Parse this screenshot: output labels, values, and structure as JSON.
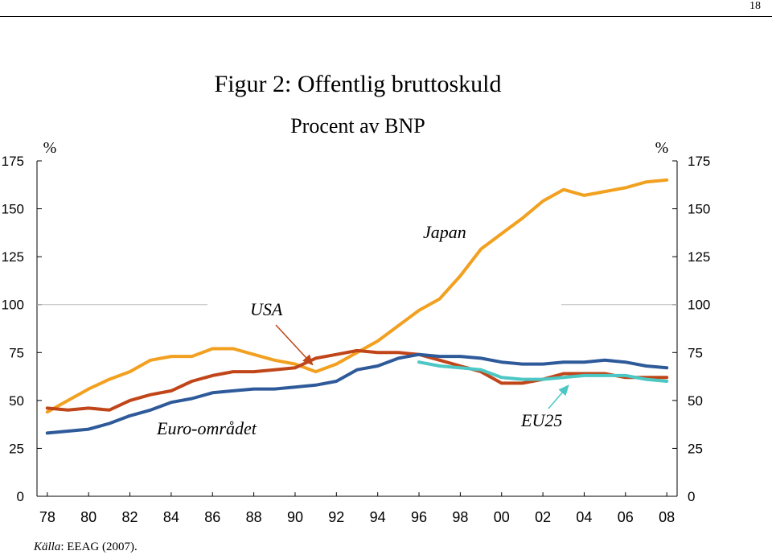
{
  "page": {
    "number": "18"
  },
  "chart_data": {
    "type": "line",
    "title": "Figur 2: Offentlig bruttoskuld",
    "subtitle": "Procent av BNP",
    "ylabel_left": "%",
    "ylabel_right": "%",
    "ylim": [
      0,
      175
    ],
    "yticks": [
      "0",
      "25",
      "50",
      "75",
      "100",
      "125",
      "150",
      "175"
    ],
    "xlim": [
      1977.5,
      2008.5
    ],
    "xticks": [
      "78",
      "80",
      "82",
      "84",
      "86",
      "88",
      "90",
      "92",
      "94",
      "96",
      "98",
      "00",
      "02",
      "04",
      "06",
      "08"
    ],
    "grid": false,
    "series": [
      {
        "name": "Japan",
        "color": "#F2A01F",
        "x": [
          1978,
          1979,
          1980,
          1981,
          1982,
          1983,
          1984,
          1985,
          1986,
          1987,
          1988,
          1989,
          1990,
          1991,
          1992,
          1993,
          1994,
          1995,
          1996,
          1997,
          1998,
          1999,
          2000,
          2001,
          2002,
          2003,
          2004,
          2005,
          2006,
          2007,
          2008
        ],
        "values": [
          44,
          50,
          56,
          61,
          65,
          71,
          73,
          73,
          77,
          77,
          74,
          71,
          69,
          65,
          69,
          75,
          81,
          89,
          97,
          103,
          115,
          129,
          137,
          145,
          154,
          160,
          157,
          159,
          161,
          164,
          165
        ]
      },
      {
        "name": "USA",
        "color": "#C0461A",
        "x": [
          1978,
          1979,
          1980,
          1981,
          1982,
          1983,
          1984,
          1985,
          1986,
          1987,
          1988,
          1989,
          1990,
          1991,
          1992,
          1993,
          1994,
          1995,
          1996,
          1997,
          1998,
          1999,
          2000,
          2001,
          2002,
          2003,
          2004,
          2005,
          2006,
          2007,
          2008
        ],
        "values": [
          46,
          45,
          46,
          45,
          50,
          53,
          55,
          60,
          63,
          65,
          65,
          66,
          67,
          72,
          74,
          76,
          75,
          75,
          74,
          71,
          68,
          65,
          59,
          59,
          61,
          64,
          64,
          64,
          62,
          62,
          62
        ]
      },
      {
        "name": "Euro-området",
        "color": "#2E5A9A",
        "x": [
          1978,
          1979,
          1980,
          1981,
          1982,
          1983,
          1984,
          1985,
          1986,
          1987,
          1988,
          1989,
          1990,
          1991,
          1992,
          1993,
          1994,
          1995,
          1996,
          1997,
          1998,
          1999,
          2000,
          2001,
          2002,
          2003,
          2004,
          2005,
          2006,
          2007,
          2008
        ],
        "values": [
          33,
          34,
          35,
          38,
          42,
          45,
          49,
          51,
          54,
          55,
          56,
          56,
          57,
          58,
          60,
          66,
          68,
          72,
          74,
          73,
          73,
          72,
          70,
          69,
          69,
          70,
          70,
          71,
          70,
          68,
          67
        ]
      },
      {
        "name": "EU25",
        "color": "#4CC7C4",
        "x": [
          1996,
          1997,
          1998,
          1999,
          2000,
          2001,
          2002,
          2003,
          2004,
          2005,
          2006,
          2007,
          2008
        ],
        "values": [
          70,
          68,
          67,
          66,
          62,
          61,
          61,
          62,
          63,
          63,
          63,
          61,
          60
        ]
      }
    ],
    "annotations": [
      {
        "text": "Japan",
        "series": "Japan"
      },
      {
        "text": "USA",
        "series": "USA",
        "arrow_to": [
          1991,
          67
        ]
      },
      {
        "text": "Euro-området",
        "series": "Euro-området"
      },
      {
        "text": "EU25",
        "series": "EU25",
        "arrow_to": [
          2003,
          62
        ]
      }
    ]
  },
  "source": {
    "label": "Källa",
    "text": ": EEAG (2007)."
  }
}
